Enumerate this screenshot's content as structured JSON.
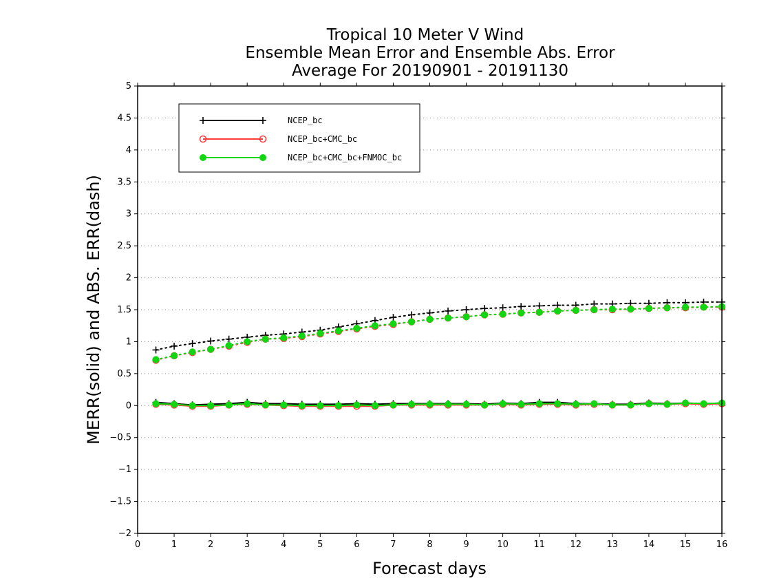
{
  "chart_data": {
    "type": "line",
    "title": [
      "Tropical 10 Meter V Wind",
      "Ensemble Mean Error and Ensemble Abs. Error",
      "Average For 20190901 - 20191130"
    ],
    "xlabel": "Forecast days",
    "ylabel": "MERR(solid) and ABS. ERR(dash)",
    "xlim": [
      0,
      16
    ],
    "ylim": [
      -2,
      5
    ],
    "xticks": [
      "0",
      "1",
      "2",
      "3",
      "4",
      "5",
      "6",
      "7",
      "8",
      "9",
      "10",
      "11",
      "12",
      "13",
      "14",
      "15",
      "16"
    ],
    "yticks": [
      "−2",
      "−1.5",
      "−1",
      "−0.5",
      "0",
      "0.5",
      "1",
      "1.5",
      "2",
      "2.5",
      "3",
      "3.5",
      "4",
      "4.5",
      "5"
    ],
    "grid": "horizontal dotted",
    "legend_position": "top-left",
    "x": [
      0.5,
      1,
      1.5,
      2,
      2.5,
      3,
      3.5,
      4,
      4.5,
      5,
      5.5,
      6,
      6.5,
      7,
      7.5,
      8,
      8.5,
      9,
      9.5,
      10,
      10.5,
      11,
      11.5,
      12,
      12.5,
      13,
      13.5,
      14,
      14.5,
      15,
      15.5,
      16
    ],
    "series": [
      {
        "name": "NCEP_bc",
        "color": "#000000",
        "marker": "plus",
        "merr": [
          0.05,
          0.03,
          0.01,
          0.02,
          0.03,
          0.05,
          0.03,
          0.03,
          0.02,
          0.02,
          0.02,
          0.03,
          0.02,
          0.03,
          0.03,
          0.03,
          0.03,
          0.03,
          0.02,
          0.04,
          0.03,
          0.05,
          0.05,
          0.03,
          0.03,
          0.02,
          0.02,
          0.04,
          0.03,
          0.04,
          0.03,
          0.04
        ],
        "abs_err": [
          0.87,
          0.93,
          0.97,
          1.01,
          1.04,
          1.07,
          1.1,
          1.12,
          1.15,
          1.18,
          1.23,
          1.28,
          1.33,
          1.38,
          1.42,
          1.45,
          1.48,
          1.5,
          1.52,
          1.53,
          1.55,
          1.56,
          1.57,
          1.57,
          1.59,
          1.59,
          1.6,
          1.6,
          1.61,
          1.61,
          1.62,
          1.62
        ]
      },
      {
        "name": "NCEP_bc+CMC_bc",
        "color": "#ff3b3b",
        "marker": "open-circle",
        "merr": [
          0.02,
          0.01,
          -0.01,
          -0.01,
          0.01,
          0.02,
          0.01,
          0.0,
          -0.01,
          -0.01,
          -0.01,
          -0.01,
          -0.01,
          0.01,
          0.01,
          0.01,
          0.01,
          0.01,
          0.01,
          0.02,
          0.01,
          0.02,
          0.02,
          0.01,
          0.02,
          0.01,
          0.01,
          0.03,
          0.02,
          0.03,
          0.02,
          0.03
        ],
        "abs_err": [
          0.71,
          0.78,
          0.83,
          0.88,
          0.93,
          0.99,
          1.04,
          1.05,
          1.08,
          1.12,
          1.16,
          1.2,
          1.24,
          1.27,
          1.31,
          1.35,
          1.37,
          1.39,
          1.42,
          1.43,
          1.45,
          1.46,
          1.48,
          1.49,
          1.5,
          1.5,
          1.51,
          1.52,
          1.53,
          1.53,
          1.54,
          1.54
        ]
      },
      {
        "name": "NCEP_bc+CMC_bc+FNMOC_bc",
        "color": "#12d612",
        "marker": "filled-circle",
        "merr": [
          0.03,
          0.02,
          0.0,
          0.0,
          0.01,
          0.03,
          0.01,
          0.01,
          0.0,
          0.0,
          0.0,
          0.01,
          0.0,
          0.01,
          0.02,
          0.02,
          0.02,
          0.02,
          0.01,
          0.03,
          0.02,
          0.03,
          0.03,
          0.02,
          0.03,
          0.01,
          0.01,
          0.03,
          0.02,
          0.04,
          0.03,
          0.04
        ],
        "abs_err": [
          0.72,
          0.78,
          0.84,
          0.88,
          0.94,
          1.0,
          1.04,
          1.06,
          1.09,
          1.13,
          1.17,
          1.21,
          1.25,
          1.28,
          1.31,
          1.35,
          1.37,
          1.39,
          1.42,
          1.43,
          1.45,
          1.46,
          1.48,
          1.49,
          1.5,
          1.51,
          1.51,
          1.52,
          1.53,
          1.54,
          1.54,
          1.55
        ]
      }
    ]
  }
}
